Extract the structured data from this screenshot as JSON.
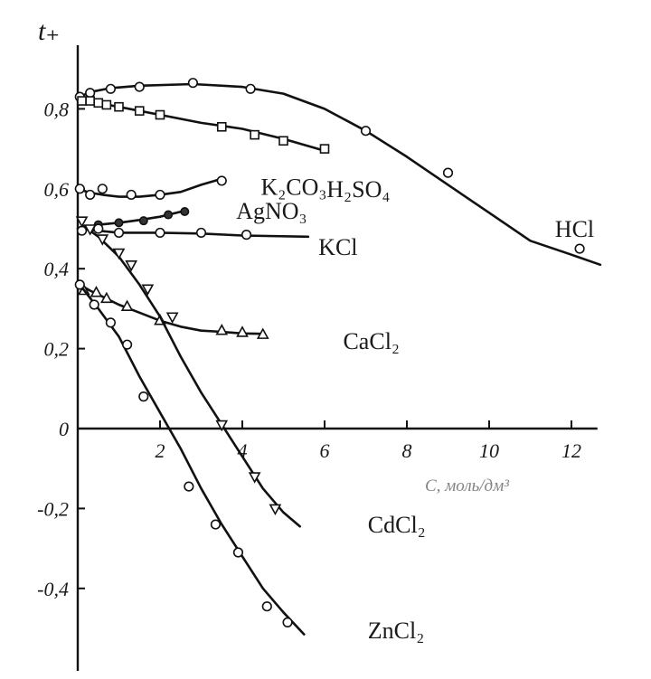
{
  "chart_data": {
    "type": "line",
    "title": "",
    "ylabel": "t₊",
    "xlabel": "C, моль/дм³",
    "xlim": [
      0,
      12.5
    ],
    "ylim": [
      -0.52,
      0.93
    ],
    "x_ticks": [
      {
        "value": 2,
        "label": "2"
      },
      {
        "value": 4,
        "label": "4"
      },
      {
        "value": 6,
        "label": "6"
      },
      {
        "value": 8,
        "label": "8"
      },
      {
        "value": 10,
        "label": "10"
      },
      {
        "value": 12,
        "label": "12"
      }
    ],
    "y_ticks": [
      {
        "value": 0.8,
        "label": "0,8"
      },
      {
        "value": 0.6,
        "label": "0,6"
      },
      {
        "value": 0.4,
        "label": "0,4"
      },
      {
        "value": 0.2,
        "label": "0,2"
      },
      {
        "value": 0,
        "label": "0"
      },
      {
        "value": -0.2,
        "label": "-0,2"
      },
      {
        "value": -0.4,
        "label": "-0,4"
      }
    ],
    "grid": false,
    "legend": "none",
    "series": [
      {
        "name": "HCl",
        "marker": "circle",
        "label_x": 11.6,
        "label_y": 0.5,
        "line": [
          [
            0.05,
            0.83
          ],
          [
            0.3,
            0.842
          ],
          [
            0.8,
            0.852
          ],
          [
            1.5,
            0.858
          ],
          [
            2.8,
            0.862
          ],
          [
            4,
            0.855
          ],
          [
            5,
            0.838
          ],
          [
            6,
            0.8
          ],
          [
            7,
            0.745
          ],
          [
            8,
            0.68
          ],
          [
            9,
            0.61
          ],
          [
            10,
            0.54
          ],
          [
            11,
            0.47
          ],
          [
            12,
            0.435
          ],
          [
            12.7,
            0.41
          ]
        ],
        "points": [
          [
            0.05,
            0.83
          ],
          [
            0.3,
            0.84
          ],
          [
            0.8,
            0.85
          ],
          [
            1.5,
            0.855
          ],
          [
            2.8,
            0.865
          ],
          [
            4.2,
            0.85
          ],
          [
            7,
            0.745
          ],
          [
            9,
            0.64
          ],
          [
            12.2,
            0.45
          ]
        ]
      },
      {
        "name": "H₂SO₄",
        "marker": "square",
        "label_x": 6.05,
        "label_y": 0.6,
        "line": [
          [
            0.05,
            0.82
          ],
          [
            0.5,
            0.815
          ],
          [
            1,
            0.805
          ],
          [
            2,
            0.785
          ],
          [
            3,
            0.765
          ],
          [
            4,
            0.75
          ],
          [
            5,
            0.725
          ],
          [
            6,
            0.695
          ]
        ],
        "points": [
          [
            0.1,
            0.82
          ],
          [
            0.3,
            0.82
          ],
          [
            0.5,
            0.815
          ],
          [
            0.7,
            0.81
          ],
          [
            1,
            0.805
          ],
          [
            1.5,
            0.795
          ],
          [
            2,
            0.785
          ],
          [
            3.5,
            0.755
          ],
          [
            4.3,
            0.735
          ],
          [
            5,
            0.72
          ],
          [
            6,
            0.7
          ]
        ]
      },
      {
        "name": "K₂CO₃",
        "marker": "circle",
        "label_x": 4.45,
        "label_y": 0.605,
        "line": [
          [
            0,
            0.6
          ],
          [
            0.3,
            0.59
          ],
          [
            0.6,
            0.585
          ],
          [
            1,
            0.58
          ],
          [
            1.5,
            0.58
          ],
          [
            2,
            0.585
          ],
          [
            2.5,
            0.592
          ],
          [
            3,
            0.61
          ],
          [
            3.5,
            0.625
          ]
        ],
        "points": [
          [
            0.05,
            0.6
          ],
          [
            0.3,
            0.585
          ],
          [
            0.6,
            0.6
          ],
          [
            1.3,
            0.585
          ],
          [
            2,
            0.585
          ],
          [
            3.5,
            0.62
          ]
        ]
      },
      {
        "name": "AgNO₃",
        "marker": "filled-circle",
        "label_x": 3.85,
        "label_y": 0.545,
        "line": [
          [
            0,
            0.5
          ],
          [
            0.5,
            0.51
          ],
          [
            1,
            0.515
          ],
          [
            1.5,
            0.522
          ],
          [
            2,
            0.53
          ],
          [
            2.6,
            0.545
          ]
        ],
        "points": [
          [
            0.5,
            0.51
          ],
          [
            1,
            0.515
          ],
          [
            1.6,
            0.52
          ],
          [
            2.2,
            0.535
          ],
          [
            2.6,
            0.543
          ]
        ]
      },
      {
        "name": "KCl",
        "marker": "circle",
        "label_x": 5.85,
        "label_y": 0.455,
        "line": [
          [
            0,
            0.5
          ],
          [
            0.5,
            0.495
          ],
          [
            1,
            0.49
          ],
          [
            2,
            0.49
          ],
          [
            3,
            0.488
          ],
          [
            4,
            0.483
          ],
          [
            5.6,
            0.48
          ]
        ],
        "points": [
          [
            0.1,
            0.495
          ],
          [
            0.5,
            0.5
          ],
          [
            1,
            0.49
          ],
          [
            2,
            0.49
          ],
          [
            3,
            0.49
          ],
          [
            4.1,
            0.485
          ]
        ]
      },
      {
        "name": "CaCl₂",
        "marker": "triangle",
        "label_x": 6.45,
        "label_y": 0.22,
        "line": [
          [
            0.05,
            0.36
          ],
          [
            0.3,
            0.345
          ],
          [
            0.6,
            0.33
          ],
          [
            1,
            0.31
          ],
          [
            1.5,
            0.29
          ],
          [
            2,
            0.27
          ],
          [
            2.5,
            0.255
          ],
          [
            3,
            0.245
          ],
          [
            3.5,
            0.242
          ],
          [
            4,
            0.238
          ],
          [
            4.5,
            0.237
          ]
        ],
        "points": [
          [
            0.15,
            0.345
          ],
          [
            0.45,
            0.34
          ],
          [
            0.7,
            0.325
          ],
          [
            1.2,
            0.305
          ],
          [
            2,
            0.27
          ],
          [
            3.5,
            0.245
          ],
          [
            4,
            0.24
          ],
          [
            4.5,
            0.235
          ]
        ]
      },
      {
        "name": "CdCl₂",
        "marker": "triangle-down",
        "label_x": 7.05,
        "label_y": -0.24,
        "line": [
          [
            0.1,
            0.51
          ],
          [
            0.5,
            0.48
          ],
          [
            1,
            0.43
          ],
          [
            1.5,
            0.36
          ],
          [
            2,
            0.28
          ],
          [
            2.5,
            0.18
          ],
          [
            3,
            0.09
          ],
          [
            3.5,
            0.01
          ],
          [
            4,
            -0.07
          ],
          [
            4.5,
            -0.15
          ],
          [
            5,
            -0.21
          ],
          [
            5.4,
            -0.245
          ]
        ],
        "points": [
          [
            0.1,
            0.52
          ],
          [
            0.3,
            0.5
          ],
          [
            0.6,
            0.475
          ],
          [
            1,
            0.44
          ],
          [
            1.3,
            0.41
          ],
          [
            1.7,
            0.35
          ],
          [
            2.3,
            0.28
          ],
          [
            3.5,
            0.01
          ],
          [
            4.3,
            -0.12
          ],
          [
            4.8,
            -0.2
          ]
        ]
      },
      {
        "name": "ZnCl₂",
        "marker": "circle",
        "label_x": 7.05,
        "label_y": -0.505,
        "line": [
          [
            0.05,
            0.36
          ],
          [
            0.5,
            0.3
          ],
          [
            1,
            0.23
          ],
          [
            1.5,
            0.13
          ],
          [
            2,
            0.04
          ],
          [
            2.5,
            -0.05
          ],
          [
            3,
            -0.15
          ],
          [
            3.5,
            -0.24
          ],
          [
            4,
            -0.32
          ],
          [
            4.5,
            -0.4
          ],
          [
            5,
            -0.46
          ],
          [
            5.5,
            -0.515
          ]
        ],
        "points": [
          [
            0.05,
            0.36
          ],
          [
            0.4,
            0.31
          ],
          [
            0.8,
            0.265
          ],
          [
            1.2,
            0.21
          ],
          [
            1.6,
            0.08
          ],
          [
            2.7,
            -0.145
          ],
          [
            3.35,
            -0.24
          ],
          [
            3.9,
            -0.31
          ],
          [
            4.6,
            -0.445
          ],
          [
            5.1,
            -0.485
          ]
        ]
      }
    ]
  }
}
